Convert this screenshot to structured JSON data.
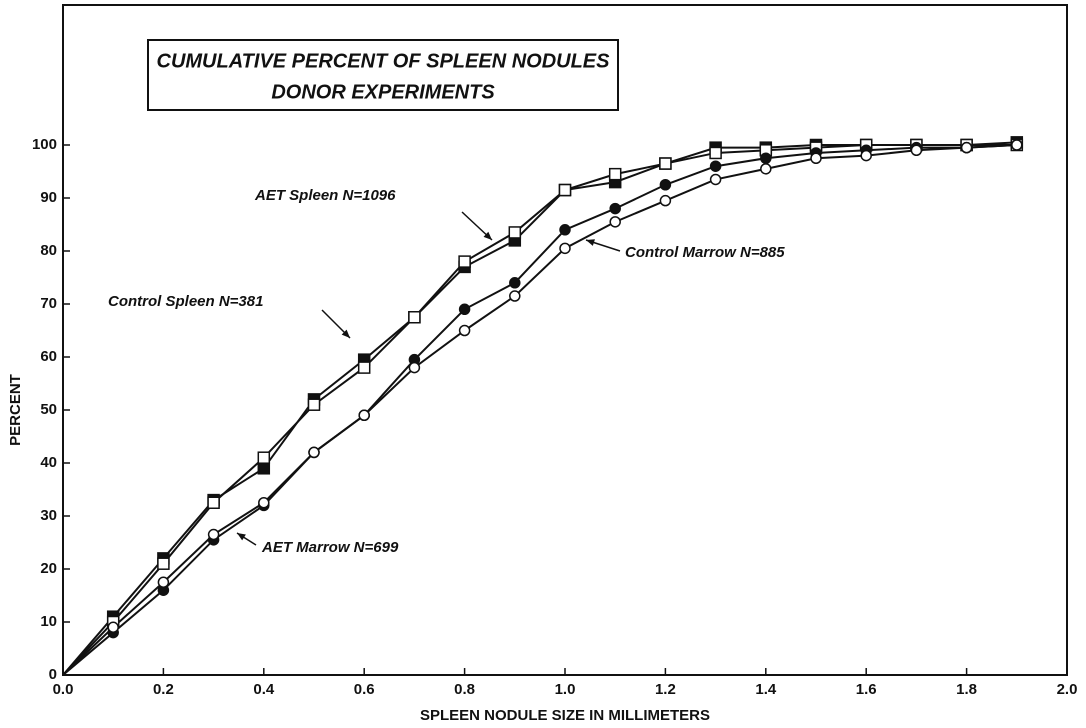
{
  "chart_data": {
    "type": "line",
    "title": [
      "CUMULATIVE PERCENT OF SPLEEN NODULES",
      "DONOR EXPERIMENTS"
    ],
    "xlabel": "SPLEEN NODULE SIZE IN MILLIMETERS",
    "ylabel": "PERCENT",
    "x": [
      0,
      0.1,
      0.2,
      0.3,
      0.4,
      0.5,
      0.6,
      0.7,
      0.8,
      0.9,
      1.0,
      1.1,
      1.2,
      1.3,
      1.4,
      1.5,
      1.6,
      1.7,
      1.8,
      1.9
    ],
    "series": [
      {
        "name": "AET Spleen N=1096",
        "color": "#111111",
        "marker": "square",
        "filled": true,
        "values": [
          0,
          11,
          22,
          33,
          39,
          52,
          59.5,
          67.5,
          77,
          82,
          91.5,
          93,
          96.5,
          99.5,
          99.5,
          100,
          100,
          100,
          100,
          100.5
        ]
      },
      {
        "name": "Control Spleen N=381",
        "color": "#111111",
        "marker": "square",
        "filled": false,
        "values": [
          0,
          10,
          21,
          32.5,
          41,
          51,
          58,
          67.5,
          78,
          83.5,
          91.5,
          94.5,
          96.5,
          98.5,
          99,
          99.5,
          100,
          100,
          100,
          100
        ]
      },
      {
        "name": "AET Marrow N=699",
        "color": "#111111",
        "marker": "circle",
        "filled": true,
        "values": [
          0,
          8,
          16,
          25.5,
          32,
          42,
          49,
          59.5,
          69,
          74,
          84,
          88,
          92.5,
          96,
          97.5,
          98.5,
          99,
          99.5,
          99.5,
          100
        ]
      },
      {
        "name": "Control Marrow N=885",
        "color": "#111111",
        "marker": "circle",
        "filled": false,
        "values": [
          0,
          9,
          17.5,
          26.5,
          32.5,
          42,
          49,
          58,
          65,
          71.5,
          80.5,
          85.5,
          89.5,
          93.5,
          95.5,
          97.5,
          98,
          99,
          99.5,
          100
        ]
      }
    ],
    "xlim": [
      0,
      2.0
    ],
    "ylim": [
      0,
      100
    ],
    "xticks": [
      {
        "value": 0,
        "label": "0.0"
      },
      0.2,
      0.4,
      0.6,
      0.8,
      {
        "value": 1.0,
        "label": "1.0"
      },
      1.2,
      1.4,
      1.6,
      1.8,
      {
        "value": 2.0,
        "label": "2.0"
      }
    ],
    "yticks": [
      0,
      10,
      20,
      30,
      40,
      50,
      60,
      70,
      80,
      90,
      100
    ],
    "grid": false
  }
}
